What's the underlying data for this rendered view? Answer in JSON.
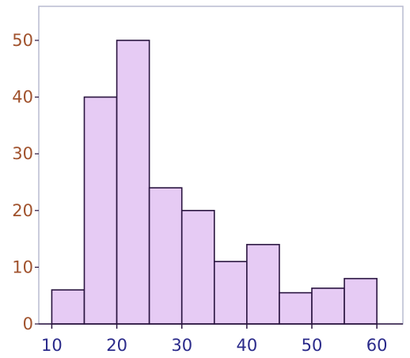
{
  "chart_data": {
    "type": "bar",
    "title": "",
    "xlabel": "",
    "ylabel": "",
    "bins": [
      {
        "start": 10,
        "end": 15,
        "value": 6
      },
      {
        "start": 15,
        "end": 20,
        "value": 40
      },
      {
        "start": 20,
        "end": 25,
        "value": 50
      },
      {
        "start": 25,
        "end": 30,
        "value": 24
      },
      {
        "start": 30,
        "end": 35,
        "value": 20
      },
      {
        "start": 35,
        "end": 40,
        "value": 11
      },
      {
        "start": 40,
        "end": 45,
        "value": 14
      },
      {
        "start": 45,
        "end": 50,
        "value": 5.5
      },
      {
        "start": 50,
        "end": 55,
        "value": 6.3
      },
      {
        "start": 55,
        "end": 60,
        "value": 8
      }
    ],
    "xlim": [
      8,
      64
    ],
    "ylim": [
      0,
      56
    ],
    "x_ticks": [
      10,
      20,
      30,
      40,
      50,
      60
    ],
    "y_ticks": [
      0,
      10,
      20,
      30,
      40,
      50
    ],
    "grid": false,
    "legend": "none",
    "colors": {
      "bar_fill": "#e6cbf4",
      "bar_stroke": "#2a1540",
      "y_tick_color": "#a0522d",
      "x_tick_color": "#2a2a8a",
      "frame": "#b8bcd0"
    }
  }
}
